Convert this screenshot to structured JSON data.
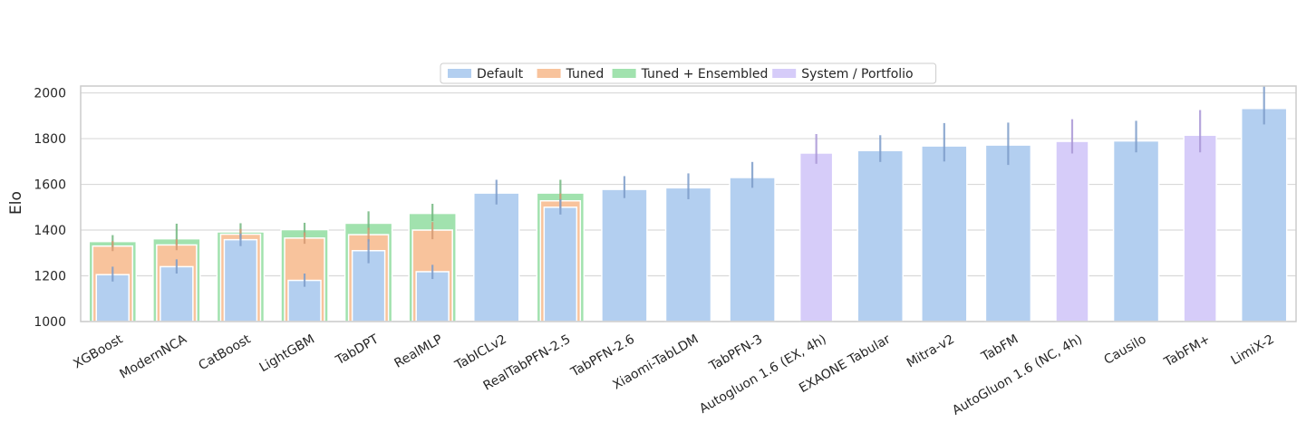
{
  "colors": {
    "default": "#b3cff0",
    "tuned": "#f8c39c",
    "tuned_ensembled": "#a1e2ae",
    "portfolio": "#d6ccf9",
    "err_default": "#7d9cc9",
    "err_tuned": "#d59a73",
    "err_ensembled": "#72b77f",
    "err_portfolio": "#a996d6",
    "grid": "#d9d9d9",
    "axis": "#cccccc"
  },
  "chart_data": {
    "type": "bar",
    "ylabel": "Elo",
    "xlabel": "",
    "ylim": [
      1000,
      2030
    ],
    "yticks": [
      1000,
      1200,
      1400,
      1600,
      1800,
      2000
    ],
    "grid": true,
    "legend_position": "top-center",
    "legend": [
      {
        "key": "default",
        "label": "Default"
      },
      {
        "key": "tuned",
        "label": "Tuned"
      },
      {
        "key": "tuned_ensembled",
        "label": "Tuned + Ensembled"
      },
      {
        "key": "portfolio",
        "label": "System / Portfolio"
      }
    ],
    "models": [
      {
        "name": "XGBoost",
        "default": 1205,
        "default_err": [
          1175,
          1240
        ],
        "tuned": 1330,
        "tuned_err": [
          1308,
          1352
        ],
        "ensembled": 1350,
        "ensembled_err": [
          1325,
          1378
        ]
      },
      {
        "name": "ModernNCA",
        "default": 1240,
        "default_err": [
          1210,
          1272
        ],
        "tuned": 1335,
        "tuned_err": [
          1312,
          1360
        ],
        "ensembled": 1362,
        "ensembled_err": [
          1335,
          1428
        ]
      },
      {
        "name": "CatBoost",
        "default": 1358,
        "default_err": [
          1330,
          1385
        ],
        "tuned": 1382,
        "tuned_err": [
          1358,
          1405
        ],
        "ensembled": 1392,
        "ensembled_err": [
          1368,
          1430
        ]
      },
      {
        "name": "LightGBM",
        "default": 1180,
        "default_err": [
          1152,
          1210
        ],
        "tuned": 1365,
        "tuned_err": [
          1340,
          1390
        ],
        "ensembled": 1402,
        "ensembled_err": [
          1375,
          1432
        ]
      },
      {
        "name": "TabDPT",
        "default": 1310,
        "default_err": [
          1255,
          1360
        ],
        "tuned": 1380,
        "tuned_err": [
          1350,
          1410
        ],
        "ensembled": 1430,
        "ensembled_err": [
          1400,
          1482
        ]
      },
      {
        "name": "RealMLP",
        "default": 1218,
        "default_err": [
          1186,
          1248
        ],
        "tuned": 1400,
        "tuned_err": [
          1360,
          1435
        ],
        "ensembled": 1473,
        "ensembled_err": [
          1440,
          1515
        ]
      },
      {
        "name": "TabICLv2",
        "default": 1562,
        "default_err": [
          1512,
          1620
        ]
      },
      {
        "name": "RealTabPFN-2.5",
        "default": 1500,
        "default_err": [
          1468,
          1535
        ],
        "tuned": 1528,
        "tuned_err": [
          1495,
          1560
        ],
        "ensembled": 1562,
        "ensembled_err": [
          1525,
          1620
        ]
      },
      {
        "name": "TabPFN-2.6",
        "default": 1578,
        "default_err": [
          1540,
          1636
        ]
      },
      {
        "name": "Xiaomi-TabLDM",
        "default": 1585,
        "default_err": [
          1535,
          1648
        ]
      },
      {
        "name": "TabPFN-3",
        "default": 1630,
        "default_err": [
          1585,
          1698
        ]
      },
      {
        "name": "Autogluon 1.6 (EX, 4h)",
        "portfolio": 1737,
        "portfolio_err": [
          1690,
          1820
        ]
      },
      {
        "name": "EXAONE Tabular",
        "default": 1748,
        "default_err": [
          1698,
          1815
        ]
      },
      {
        "name": "Mitra-v2",
        "default": 1768,
        "default_err": [
          1700,
          1868
        ]
      },
      {
        "name": "TabFM",
        "default": 1772,
        "default_err": [
          1685,
          1870
        ]
      },
      {
        "name": "AutoGluon 1.6 (NC, 4h)",
        "portfolio": 1788,
        "portfolio_err": [
          1735,
          1885
        ]
      },
      {
        "name": "Causilo",
        "default": 1790,
        "default_err": [
          1740,
          1878
        ]
      },
      {
        "name": "TabFM+",
        "portfolio": 1815,
        "portfolio_err": [
          1740,
          1925
        ]
      },
      {
        "name": "LimiX-2",
        "default": 1932,
        "default_err": [
          1862,
          2030
        ]
      }
    ]
  }
}
